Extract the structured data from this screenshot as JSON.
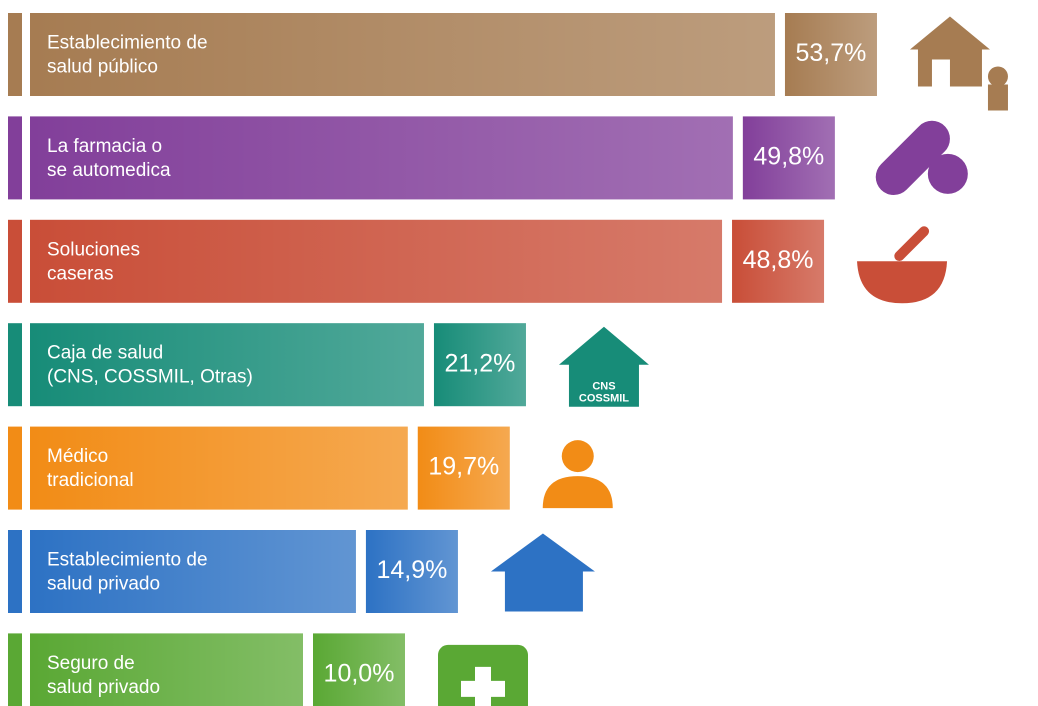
{
  "chart_data": {
    "type": "bar",
    "orientation": "horizontal",
    "categories": [
      [
        "Establecimiento de",
        "salud público"
      ],
      [
        "La farmacia o",
        "se automedica"
      ],
      [
        "Soluciones",
        "caseras"
      ],
      [
        "Caja de salud",
        "(CNS, COSSMIL, Otras)"
      ],
      [
        "Médico",
        "tradicional"
      ],
      [
        "Establecimiento de",
        "salud privado"
      ],
      [
        "Seguro de",
        "salud privado"
      ]
    ],
    "values": [
      53.7,
      49.8,
      48.8,
      21.2,
      19.7,
      14.9,
      10.0
    ],
    "value_labels": [
      "53,7%",
      "49,8%",
      "48,8%",
      "21,2%",
      "19,7%",
      "14,9%",
      "10,0%"
    ],
    "colors": [
      "#a67c52",
      "#823f9a",
      "#c94e38",
      "#178c78",
      "#f28c16",
      "#2d72c4",
      "#5aa834"
    ],
    "annotations": [
      "CNS",
      "COSSMIL"
    ]
  }
}
